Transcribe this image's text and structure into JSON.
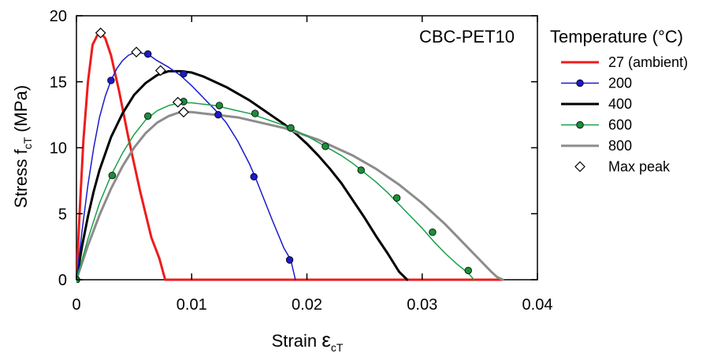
{
  "chart_data": {
    "type": "line",
    "annotation": "CBC-PET10",
    "xlabel_main": "Strain ",
    "xlabel_symbol": "ε",
    "xlabel_sub": "cT",
    "ylabel_main": "Stress f",
    "ylabel_sub": "cT",
    "ylabel_unit": "  (MPa)",
    "xlim": [
      0,
      0.04
    ],
    "ylim": [
      0,
      20
    ],
    "x_ticks": [
      0,
      0.01,
      0.02,
      0.03,
      0.04
    ],
    "x_tick_labels": [
      "0",
      "0.01",
      "0.02",
      "0.03",
      "0.04"
    ],
    "y_ticks": [
      0,
      5,
      10,
      15,
      20
    ],
    "y_tick_labels": [
      "0",
      "5",
      "10",
      "15",
      "20"
    ],
    "grid": false,
    "legend_position": "right",
    "legend_title": "Temperature (°C)",
    "series": [
      {
        "name": "27 (ambient)",
        "color": "#ee1c1c",
        "width": 3,
        "marker": "none",
        "x": [
          0,
          0.0003,
          0.0006,
          0.001,
          0.0014,
          0.0018,
          0.0021,
          0.0025,
          0.003,
          0.0037,
          0.0045,
          0.0055,
          0.0065,
          0.0072,
          0.0077,
          0.01,
          0.015,
          0.02,
          0.025,
          0.03,
          0.035,
          0.037
        ],
        "y": [
          0,
          5.5,
          10.5,
          15.0,
          17.8,
          18.5,
          18.7,
          18.3,
          17.0,
          14.3,
          10.8,
          6.8,
          3.2,
          1.6,
          0,
          0,
          0,
          0,
          0,
          0,
          0,
          0
        ]
      },
      {
        "name": "200",
        "color": "#1a1acc",
        "width": 1.5,
        "marker": "circle",
        "x": [
          0,
          0.0005,
          0.001,
          0.0015,
          0.002,
          0.0025,
          0.003,
          0.0035,
          0.004,
          0.0045,
          0.005,
          0.0055,
          0.006,
          0.0065,
          0.007,
          0.008,
          0.009,
          0.01,
          0.011,
          0.012,
          0.0125,
          0.013,
          0.014,
          0.015,
          0.0155,
          0.016,
          0.017,
          0.018,
          0.0186,
          0.019
        ],
        "y": [
          0,
          3.8,
          7.2,
          10.0,
          12.3,
          13.9,
          15.1,
          16.0,
          16.6,
          17.0,
          17.2,
          17.2,
          17.1,
          16.9,
          16.6,
          16.1,
          15.5,
          14.7,
          13.8,
          12.9,
          12.4,
          11.9,
          10.5,
          8.8,
          7.8,
          6.7,
          4.5,
          2.4,
          1.5,
          0
        ],
        "marker_x": [
          0,
          0.003,
          0.0062,
          0.0093,
          0.0123,
          0.0154,
          0.0185
        ],
        "marker_y": [
          0,
          15.1,
          17.1,
          15.6,
          12.5,
          7.8,
          1.5
        ]
      },
      {
        "name": "400",
        "color": "#000000",
        "width": 3,
        "marker": "none",
        "x": [
          0,
          0.0005,
          0.001,
          0.0015,
          0.002,
          0.003,
          0.004,
          0.005,
          0.006,
          0.007,
          0.008,
          0.009,
          0.01,
          0.011,
          0.012,
          0.013,
          0.014,
          0.015,
          0.016,
          0.017,
          0.018,
          0.019,
          0.02,
          0.021,
          0.022,
          0.023,
          0.024,
          0.025,
          0.026,
          0.027,
          0.028,
          0.0287
        ],
        "y": [
          0,
          2.6,
          4.8,
          6.7,
          8.3,
          10.8,
          12.6,
          14.0,
          14.9,
          15.5,
          15.8,
          15.8,
          15.7,
          15.4,
          15.0,
          14.6,
          14.1,
          13.6,
          13.0,
          12.4,
          11.8,
          11.1,
          10.3,
          9.4,
          8.4,
          7.3,
          6.0,
          4.7,
          3.3,
          2.0,
          0.6,
          0
        ],
        "marker_x": [],
        "marker_y": []
      },
      {
        "name": "600",
        "color": "#18a04a",
        "width": 1.5,
        "marker": "circle",
        "marker_fill": "#1b8e3a",
        "x": [
          0,
          0.001,
          0.002,
          0.003,
          0.004,
          0.005,
          0.006,
          0.007,
          0.008,
          0.009,
          0.0093,
          0.01,
          0.011,
          0.012,
          0.013,
          0.014,
          0.015,
          0.016,
          0.017,
          0.018,
          0.019,
          0.02,
          0.021,
          0.022,
          0.023,
          0.024,
          0.025,
          0.026,
          0.027,
          0.028,
          0.029,
          0.03,
          0.031,
          0.032,
          0.033,
          0.034,
          0.0345
        ],
        "y": [
          0,
          3.1,
          5.8,
          7.9,
          9.6,
          11.0,
          12.1,
          12.8,
          13.2,
          13.4,
          13.4,
          13.4,
          13.3,
          13.2,
          13.0,
          12.8,
          12.6,
          12.3,
          12.0,
          11.7,
          11.3,
          10.9,
          10.4,
          9.9,
          9.4,
          8.8,
          8.1,
          7.4,
          6.6,
          5.7,
          4.8,
          3.9,
          2.9,
          2.0,
          1.2,
          0.5,
          0
        ],
        "marker_x": [
          0,
          0.0031,
          0.0062,
          0.0093,
          0.0124,
          0.0155,
          0.0186,
          0.0216,
          0.0247,
          0.0278,
          0.0309,
          0.034
        ],
        "marker_y": [
          0,
          7.9,
          12.4,
          13.5,
          13.2,
          12.6,
          11.5,
          10.1,
          8.3,
          6.2,
          3.6,
          0.7
        ]
      },
      {
        "name": "800",
        "color": "#8c8c8c",
        "width": 3,
        "marker": "none",
        "x": [
          0,
          0.001,
          0.002,
          0.003,
          0.004,
          0.005,
          0.006,
          0.007,
          0.008,
          0.009,
          0.0095,
          0.01,
          0.011,
          0.012,
          0.013,
          0.014,
          0.015,
          0.016,
          0.017,
          0.018,
          0.019,
          0.02,
          0.021,
          0.022,
          0.023,
          0.024,
          0.025,
          0.026,
          0.027,
          0.028,
          0.029,
          0.03,
          0.031,
          0.032,
          0.033,
          0.034,
          0.035,
          0.036,
          0.0365,
          0.037
        ],
        "y": [
          0,
          2.6,
          4.9,
          6.9,
          8.6,
          10.0,
          11.1,
          11.9,
          12.4,
          12.7,
          12.7,
          12.7,
          12.6,
          12.5,
          12.4,
          12.3,
          12.1,
          11.9,
          11.7,
          11.5,
          11.2,
          10.9,
          10.6,
          10.2,
          9.8,
          9.4,
          8.9,
          8.4,
          7.8,
          7.2,
          6.5,
          5.8,
          5.0,
          4.2,
          3.3,
          2.4,
          1.5,
          0.6,
          0.2,
          0
        ],
        "marker_x": [],
        "marker_y": []
      }
    ],
    "max_peak": {
      "name": "Max peak",
      "x": [
        0.0021,
        0.0052,
        0.0073,
        0.0088,
        0.0093
      ],
      "y": [
        18.7,
        17.25,
        15.85,
        13.45,
        12.7
      ]
    }
  }
}
